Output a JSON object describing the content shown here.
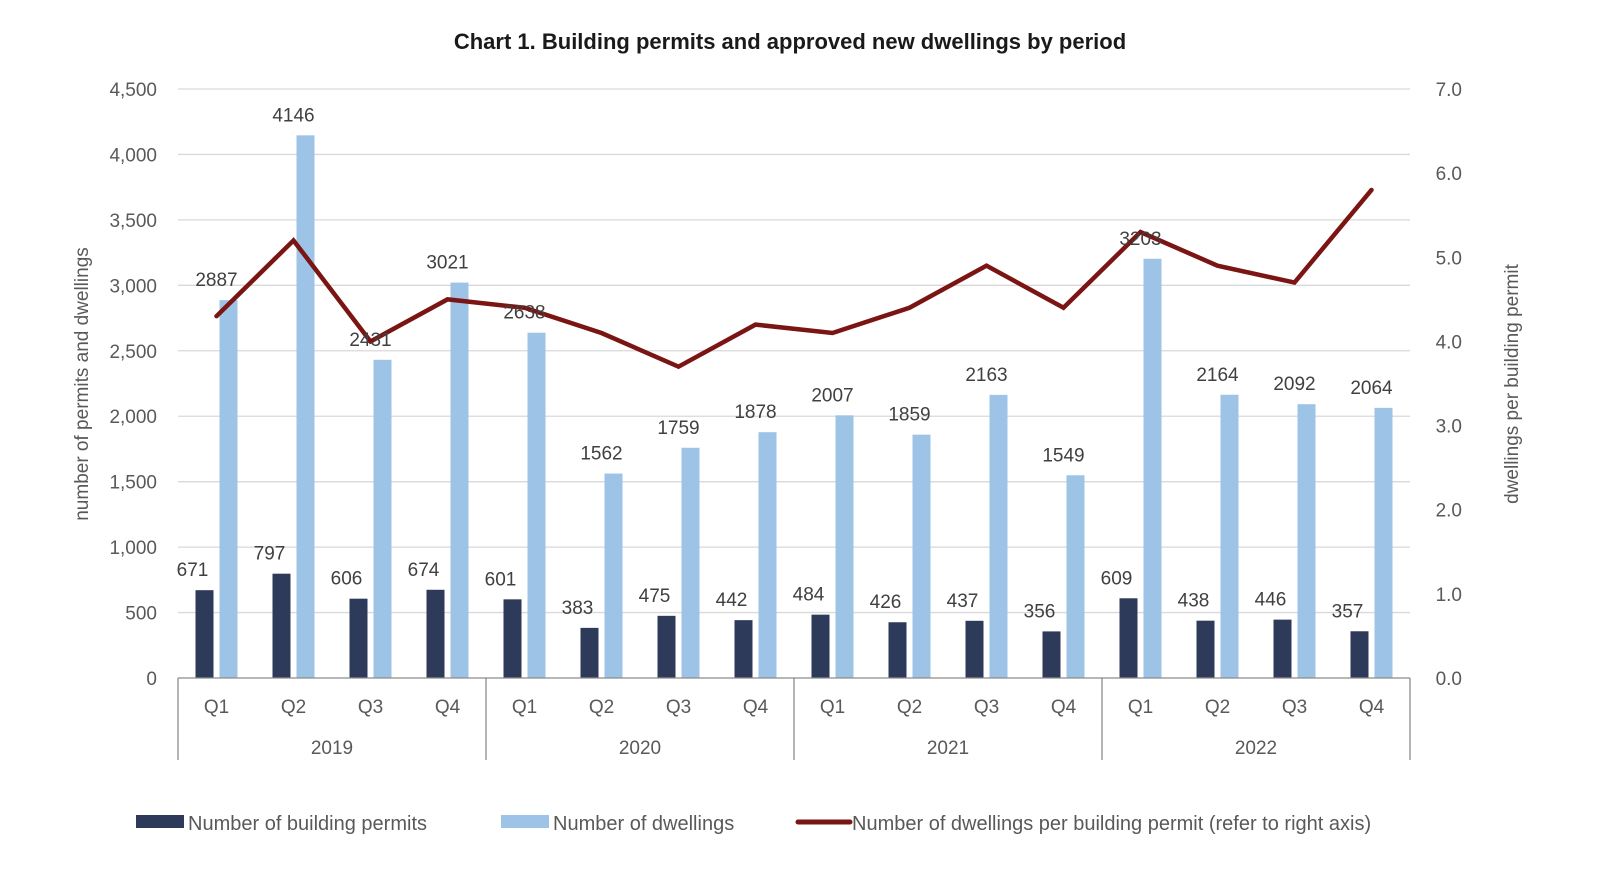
{
  "chart_data": {
    "type": "bar",
    "title": "Chart 1. Building permits and approved new dwellings by period",
    "ylabel": "number of permits and dwellings",
    "y2label": "dwellings per building permit",
    "ylim": [
      0,
      4500
    ],
    "y2lim": [
      0,
      7.0
    ],
    "yticks": [
      "0",
      "500",
      "1,000",
      "1,500",
      "2,000",
      "2,500",
      "3,000",
      "3,500",
      "4,000",
      "4,500"
    ],
    "yticks_values": [
      0,
      500,
      1000,
      1500,
      2000,
      2500,
      3000,
      3500,
      4000,
      4500
    ],
    "y2ticks": [
      "0.0",
      "1.0",
      "2.0",
      "3.0",
      "4.0",
      "5.0",
      "6.0",
      "7.0"
    ],
    "y2ticks_values": [
      0,
      1,
      2,
      3,
      4,
      5,
      6,
      7
    ],
    "grid": true,
    "legend_position": "bottom",
    "categories": [
      "Q1",
      "Q2",
      "Q3",
      "Q4",
      "Q1",
      "Q2",
      "Q3",
      "Q4",
      "Q1",
      "Q2",
      "Q3",
      "Q4",
      "Q1",
      "Q2",
      "Q3",
      "Q4"
    ],
    "groups": [
      "2019",
      "2020",
      "2021",
      "2022"
    ],
    "series": [
      {
        "name": "Number of building permits",
        "type": "bar",
        "axis": "left",
        "color": "#2e3a59",
        "values": [
          671,
          797,
          606,
          674,
          601,
          383,
          475,
          442,
          484,
          426,
          437,
          356,
          609,
          438,
          446,
          357
        ]
      },
      {
        "name": "Number of dwellings",
        "type": "bar",
        "axis": "left",
        "color": "#9dc3e6",
        "values": [
          2887,
          4146,
          2431,
          3021,
          2638,
          1562,
          1759,
          1878,
          2007,
          1859,
          2163,
          1549,
          3203,
          2164,
          2092,
          2064
        ]
      },
      {
        "name": "Number of dwellings per building permit (refer to right axis)",
        "type": "line",
        "axis": "right",
        "color": "#7b1513",
        "values": [
          4.3,
          5.2,
          4.0,
          4.5,
          4.4,
          4.1,
          3.7,
          4.2,
          4.1,
          4.4,
          4.9,
          4.4,
          5.3,
          4.9,
          4.7,
          5.8
        ]
      }
    ]
  }
}
